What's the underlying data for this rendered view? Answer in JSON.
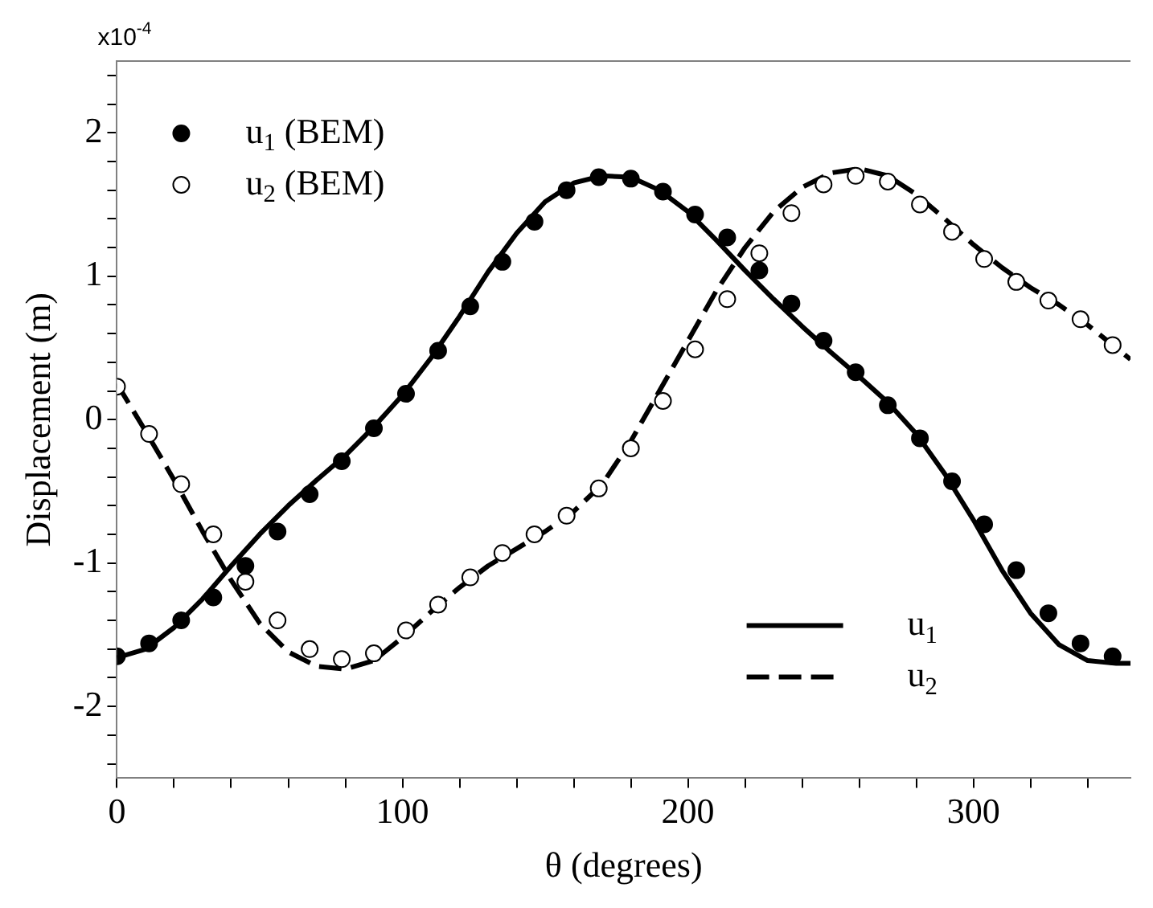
{
  "chart_data": {
    "type": "scatter",
    "xlabel": "θ (degrees)",
    "ylabel": "Displacement (m)",
    "annotations": [
      "x10$^{-4}$"
    ],
    "xlim": [
      0,
      355
    ],
    "ylim": [
      -2.5,
      2.5
    ],
    "xticks": [
      0,
      {
        "value": 20,
        "label": null
      },
      {
        "value": 40,
        "label": null
      },
      {
        "value": 60,
        "label": null
      },
      {
        "value": 80,
        "label": null
      },
      100,
      {
        "value": 120,
        "label": null
      },
      {
        "value": 140,
        "label": null
      },
      {
        "value": 160,
        "label": null
      },
      {
        "value": 180,
        "label": null
      },
      200,
      {
        "value": 220,
        "label": null
      },
      {
        "value": 240,
        "label": null
      },
      {
        "value": 260,
        "label": null
      },
      {
        "value": 280,
        "label": null
      },
      300,
      {
        "value": 320,
        "label": null
      },
      {
        "value": 340,
        "label": null
      }
    ],
    "yticks": [
      {
        "value": -2.4,
        "label": null
      },
      {
        "value": -2.2,
        "label": null
      },
      -2,
      {
        "value": -1.8,
        "label": null
      },
      {
        "value": -1.6,
        "label": null
      },
      {
        "value": -1.4,
        "label": null
      },
      {
        "value": -1.2,
        "label": null
      },
      -1,
      {
        "value": -0.8,
        "label": null
      },
      {
        "value": -0.6,
        "label": null
      },
      {
        "value": -0.4,
        "label": null
      },
      {
        "value": -0.2,
        "label": null
      },
      0,
      {
        "value": 0.2,
        "label": null
      },
      {
        "value": 0.4,
        "label": null
      },
      {
        "value": 0.6,
        "label": null
      },
      {
        "value": 0.8,
        "label": null
      },
      1,
      {
        "value": 1.2,
        "label": null
      },
      {
        "value": 1.4,
        "label": null
      },
      {
        "value": 1.6,
        "label": null
      },
      {
        "value": 1.8,
        "label": null
      },
      2,
      {
        "value": 2.2,
        "label": null
      },
      {
        "value": 2.4,
        "label": null
      }
    ],
    "grid": false,
    "legend": "top left",
    "x": [
      0,
      11.25,
      22.5,
      33.75,
      45,
      56.25,
      67.5,
      78.75,
      90,
      101.25,
      112.5,
      123.75,
      135,
      146.25,
      157.5,
      168.75,
      180,
      191.25,
      202.5,
      213.75,
      225,
      236.25,
      247.5,
      258.75,
      270,
      281.25,
      292.5,
      303.75,
      315,
      326.25,
      337.5,
      348.75
    ],
    "series": [
      {
        "name": "u$_{1}$ (BEM)",
        "color": "#000000",
        "marker": "circle",
        "values": [
          -1.65,
          -1.56,
          -1.4,
          -1.24,
          -1.02,
          -0.78,
          -0.52,
          -0.29,
          -0.06,
          0.18,
          0.48,
          0.79,
          1.1,
          1.38,
          1.6,
          1.69,
          1.68,
          1.59,
          1.43,
          1.27,
          1.04,
          0.81,
          0.55,
          0.33,
          0.1,
          -0.13,
          -0.43,
          -0.73,
          -1.05,
          -1.35,
          -1.56,
          -1.65
        ]
      },
      {
        "name": "u$_{2}$ (BEM)",
        "color": "#ffffff",
        "marker": "circle",
        "values": [
          0.23,
          -0.1,
          -0.45,
          -0.8,
          -1.13,
          -1.4,
          -1.6,
          -1.67,
          -1.63,
          -1.47,
          -1.29,
          -1.1,
          -0.93,
          -0.8,
          -0.67,
          -0.48,
          -0.2,
          0.13,
          0.49,
          0.84,
          1.16,
          1.44,
          1.64,
          1.7,
          1.66,
          1.5,
          1.31,
          1.12,
          0.96,
          0.83,
          0.7,
          0.52
        ]
      },
      {
        "name": "u$_{1}$",
        "type": "line",
        "color": "#000000",
        "marker": "none",
        "line_style": "solid",
        "x": [
          0,
          10,
          20,
          30,
          40,
          50,
          60,
          70,
          80,
          90,
          100,
          110,
          120,
          130,
          140,
          150,
          160,
          170,
          180,
          190,
          200,
          210,
          220,
          230,
          240,
          250,
          260,
          270,
          280,
          290,
          300,
          310,
          320,
          330,
          340,
          350,
          355
        ],
        "values": [
          -1.66,
          -1.6,
          -1.45,
          -1.25,
          -1.02,
          -0.8,
          -0.6,
          -0.42,
          -0.25,
          -0.05,
          0.17,
          0.43,
          0.72,
          1.03,
          1.3,
          1.52,
          1.65,
          1.7,
          1.69,
          1.6,
          1.45,
          1.25,
          1.04,
          0.84,
          0.65,
          0.47,
          0.3,
          0.12,
          -0.1,
          -0.38,
          -0.7,
          -1.05,
          -1.35,
          -1.57,
          -1.68,
          -1.7,
          -1.7
        ]
      },
      {
        "name": "u$_{2}$",
        "type": "line",
        "color": "#000000",
        "marker": "none",
        "line_style": "dashed",
        "x": [
          0,
          10,
          20,
          30,
          40,
          50,
          60,
          70,
          80,
          90,
          100,
          110,
          120,
          130,
          140,
          150,
          160,
          170,
          180,
          190,
          200,
          210,
          220,
          230,
          240,
          250,
          260,
          270,
          280,
          290,
          300,
          310,
          320,
          330,
          340,
          350,
          355
        ],
        "values": [
          0.25,
          -0.08,
          -0.42,
          -0.78,
          -1.12,
          -1.42,
          -1.62,
          -1.72,
          -1.74,
          -1.68,
          -1.52,
          -1.34,
          -1.17,
          -1.02,
          -0.9,
          -0.78,
          -0.64,
          -0.45,
          -0.15,
          0.2,
          0.55,
          0.9,
          1.2,
          1.45,
          1.62,
          1.72,
          1.75,
          1.7,
          1.57,
          1.4,
          1.22,
          1.06,
          0.92,
          0.8,
          0.66,
          0.5,
          0.42
        ]
      }
    ]
  }
}
